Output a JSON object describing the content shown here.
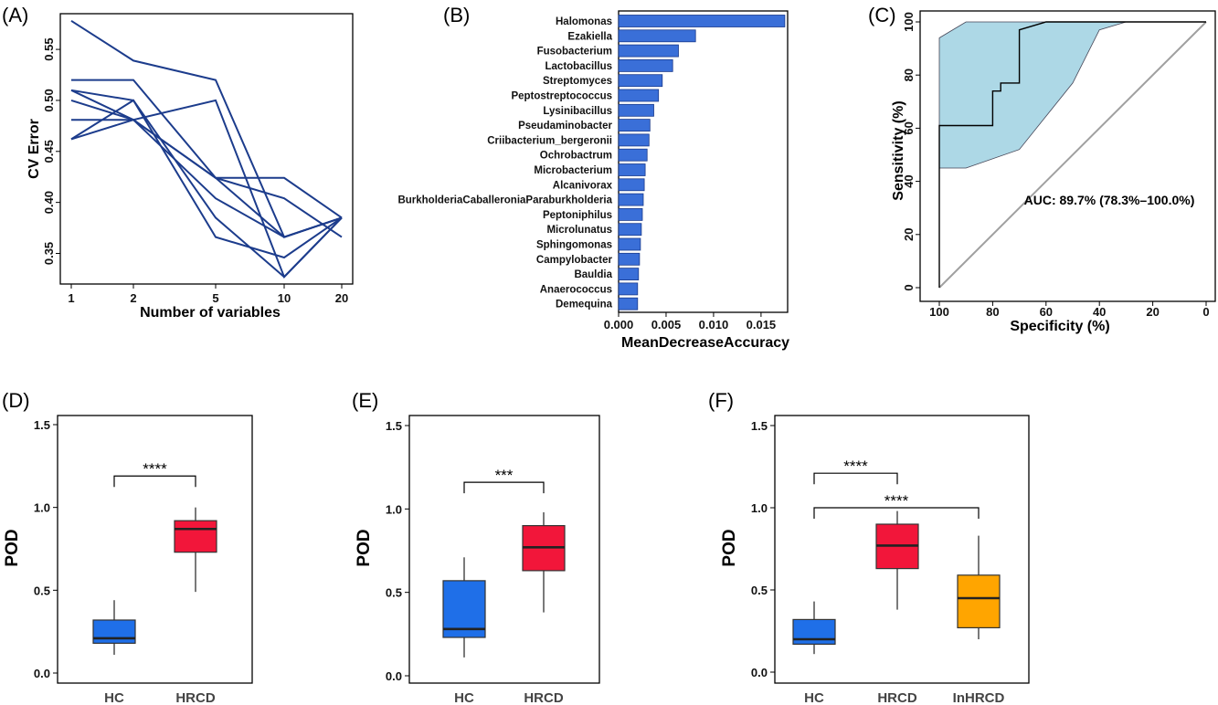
{
  "chart_data": [
    {
      "panel": "(A)",
      "type": "line",
      "xlabel": "Number of variables",
      "ylabel": "CV Error",
      "x": [
        "1",
        "2",
        "5",
        "10",
        "20"
      ],
      "xtick_labels": [
        "1",
        "2",
        "5",
        "10",
        "20"
      ],
      "ytick_labels": [
        "0.35",
        "0.40",
        "0.45",
        "0.50",
        "0.55"
      ],
      "ylim": [
        0.32,
        0.585
      ],
      "color": "#1c3c8c",
      "series": [
        {
          "values": [
            0.578,
            0.539,
            0.52,
            0.366,
            0.385
          ]
        },
        {
          "values": [
            0.52,
            0.52,
            0.424,
            0.424,
            0.385
          ]
        },
        {
          "values": [
            0.51,
            0.481,
            0.5,
            0.327,
            0.385
          ]
        },
        {
          "values": [
            0.5,
            0.481,
            0.424,
            0.404,
            0.366
          ]
        },
        {
          "values": [
            0.481,
            0.481,
            0.424,
            0.366,
            0.385
          ]
        },
        {
          "values": [
            0.462,
            0.481,
            0.404,
            0.366,
            0.385
          ]
        },
        {
          "values": [
            0.462,
            0.5,
            0.385,
            0.327,
            0.385
          ]
        },
        {
          "values": [
            0.51,
            0.5,
            0.366,
            0.346,
            0.385
          ]
        }
      ]
    },
    {
      "panel": "(B)",
      "type": "bar",
      "orientation": "horizontal",
      "xlabel": "MeanDecreaseAccuracy",
      "xtick_labels": [
        "0.000",
        "0.005",
        "0.010",
        "0.015"
      ],
      "xlim": [
        0,
        0.0178
      ],
      "color": "#3a6fd8",
      "categories": [
        "Halomonas",
        "Ezakiella",
        "Fusobacterium",
        "Lactobacillus",
        "Streptomyces",
        "Peptostreptococcus",
        "Lysinibacillus",
        "Pseudaminobacter",
        "Criibacterium_bergeronii",
        "Ochrobactrum",
        "Microbacterium",
        "Alcanivorax",
        "BurkholderiaCaballeroniaParaburkholderia",
        "Peptoniphilus",
        "Microlunatus",
        "Sphingomonas",
        "Campylobacter",
        "Bauldia",
        "Anaerococcus",
        "Demequina"
      ],
      "values": [
        0.0175,
        0.0081,
        0.0063,
        0.0057,
        0.0046,
        0.0042,
        0.0037,
        0.0033,
        0.0032,
        0.003,
        0.0028,
        0.0027,
        0.0026,
        0.0025,
        0.0024,
        0.0023,
        0.0022,
        0.0021,
        0.002,
        0.002
      ]
    },
    {
      "panel": "(C)",
      "type": "line",
      "xlabel": "Specificity (%)",
      "ylabel": "Sensitivity (%)",
      "xtick_labels": [
        "100",
        "80",
        "60",
        "40",
        "20",
        "0"
      ],
      "ytick_labels": [
        "0",
        "20",
        "40",
        "60",
        "80",
        "100"
      ],
      "xlim": [
        100,
        0
      ],
      "ylim": [
        0,
        100
      ],
      "annotation": "AUC: 89.7% (78.3%–100.0%)",
      "roc": {
        "x": [
          100,
          100,
          80,
          80,
          77,
          77,
          70,
          70,
          60,
          30,
          0
        ],
        "y": [
          0,
          61,
          61,
          74,
          74,
          77,
          77,
          97,
          100,
          100,
          100
        ]
      },
      "ci_upper": {
        "x": [
          100,
          100,
          90,
          0
        ],
        "y": [
          45,
          94,
          100,
          100
        ]
      },
      "ci_lower": {
        "x": [
          0,
          30,
          40,
          50,
          70,
          90,
          100
        ],
        "y": [
          100,
          100,
          97,
          77,
          52,
          45,
          45
        ]
      },
      "band_color": "#add8e6",
      "diagonal_color": "#a0a0a0"
    },
    {
      "panel": "(D)",
      "type": "box",
      "ylabel": "POD",
      "ytick_labels": [
        "0.0",
        "0.5",
        "1.0",
        "1.5"
      ],
      "ylim": [
        -0.03,
        1.6
      ],
      "categories": [
        "HC",
        "HRCD"
      ],
      "colors": [
        "#1f6fe8",
        "#f2163a"
      ],
      "boxes": [
        {
          "min": 0.11,
          "q1": 0.18,
          "median": 0.21,
          "q3": 0.32,
          "max": 0.44
        },
        {
          "min": 0.49,
          "q1": 0.73,
          "median": 0.87,
          "q3": 0.92,
          "max": 1.0
        }
      ],
      "brackets": [
        {
          "from": 0,
          "to": 1,
          "label": "****",
          "y": 1.19
        }
      ]
    },
    {
      "panel": "(E)",
      "type": "box",
      "ylabel": "POD",
      "ytick_labels": [
        "0.0",
        "0.5",
        "1.0",
        "1.5"
      ],
      "ylim": [
        -0.03,
        1.6
      ],
      "categories": [
        "HC",
        "HRCD"
      ],
      "colors": [
        "#1f6fe8",
        "#f2163a"
      ],
      "boxes": [
        {
          "min": 0.11,
          "q1": 0.23,
          "median": 0.28,
          "q3": 0.57,
          "max": 0.71
        },
        {
          "min": 0.38,
          "q1": 0.63,
          "median": 0.77,
          "q3": 0.9,
          "max": 0.98
        }
      ],
      "brackets": [
        {
          "from": 0,
          "to": 1,
          "label": "***",
          "y": 1.16
        }
      ]
    },
    {
      "panel": "(F)",
      "type": "box",
      "ylabel": "POD",
      "ytick_labels": [
        "0.0",
        "0.5",
        "1.0",
        "1.5"
      ],
      "ylim": [
        -0.03,
        1.6
      ],
      "categories": [
        "HC",
        "HRCD",
        "InHRCD"
      ],
      "colors": [
        "#1f6fe8",
        "#f2163a",
        "#ffa500"
      ],
      "boxes": [
        {
          "min": 0.11,
          "q1": 0.17,
          "median": 0.2,
          "q3": 0.32,
          "max": 0.43
        },
        {
          "min": 0.38,
          "q1": 0.63,
          "median": 0.77,
          "q3": 0.9,
          "max": 0.98
        },
        {
          "min": 0.2,
          "q1": 0.27,
          "median": 0.45,
          "q3": 0.59,
          "max": 0.83
        }
      ],
      "brackets": [
        {
          "from": 0,
          "to": 1,
          "label": "****",
          "y": 1.21
        },
        {
          "from": 0,
          "to": 2,
          "label": "****",
          "y": 1.0
        }
      ]
    }
  ]
}
